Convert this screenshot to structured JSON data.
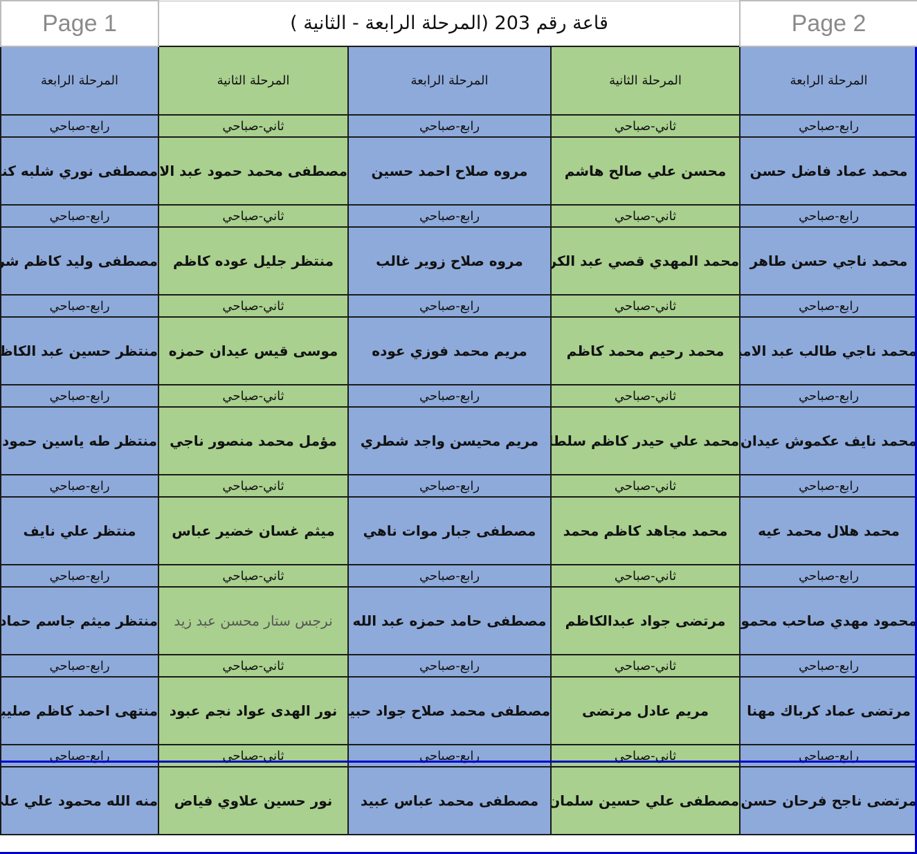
{
  "title": "قاعة رقم 203 (المرحلة الرابعة - الثانية )",
  "columns": [
    {
      "header": "المرحلة الرابعة",
      "tag": "رابع-صباحي",
      "color": "#8eaadb"
    },
    {
      "header": "المرحلة الثانية",
      "tag": "ثاني-صباحي",
      "color": "#a9d08e"
    },
    {
      "header": "المرحلة الرابعة",
      "tag": "رابع-صباحي",
      "color": "#8eaadb"
    },
    {
      "header": "المرحلة الثانية",
      "tag": "ثاني-صباحي",
      "color": "#a9d08e"
    },
    {
      "header": "المرحلة الرابعة",
      "tag": "رابع-صباحي",
      "color": "#8eaadb"
    }
  ],
  "rows": [
    [
      "محمد عماد فاضل حسن",
      "محسن علي صالح هاشم",
      "مروه صلاح احمد حسين",
      "مصطفى محمد حمود عبد الامير",
      "مصطفى نوري شلبه كنزوع"
    ],
    [
      "محمد ناجي حسن طاهر",
      "محمد المهدي قصي عبد الكريم",
      "مروه صلاح زوير غالب",
      "منتظر جليل عوده كاظم",
      "مصطفى وليد كاظم شرقي"
    ],
    [
      "محمد ناجي طالب عبد الامير",
      "محمد رحيم محمد كاظم",
      "مريم محمد فوزي عوده",
      "موسى قيس عيدان حمزه",
      "منتظر حسين عبد الكاظم"
    ],
    [
      "محمد نايف عكموش عيدان",
      "محمد علي حيدر كاظم سلطان",
      "مريم محيسن واجد شطري",
      "مؤمل محمد منصور ناجي",
      "منتظر طه ياسين حمود"
    ],
    [
      "محمد هلال محمد عيه",
      "محمد مجاهد كاظم محمد",
      "مصطفى جبار موات ناهي",
      "ميثم غسان خضير عباس",
      "منتظر علي نايف"
    ],
    [
      "محمود مهدي صاحب محمود",
      "مرتضى جواد عبدالكاظم",
      "مصطفى حامد حمزه عبد الله",
      "نرجس ستار محسن عبد زيد",
      "منتظر ميثم جاسم حمادي"
    ],
    [
      "مرتضى عماد كرباك مهنا",
      "مريم عادل مرتضى",
      "مصطفى محمد صلاح جواد حبيب",
      "نور الهدى عواد نجم عبود",
      "منتهى احمد كاظم صليبي"
    ],
    [
      "مرتضى ناجح فرحان حسن",
      "مصطفى علي حسين سلمان",
      "مصطفى محمد عباس عبيد",
      "نور حسين علاوي فياض",
      "منه الله محمود علي علي"
    ]
  ],
  "watermarks": {
    "page1": "Page 1",
    "page2": "Page 2"
  }
}
